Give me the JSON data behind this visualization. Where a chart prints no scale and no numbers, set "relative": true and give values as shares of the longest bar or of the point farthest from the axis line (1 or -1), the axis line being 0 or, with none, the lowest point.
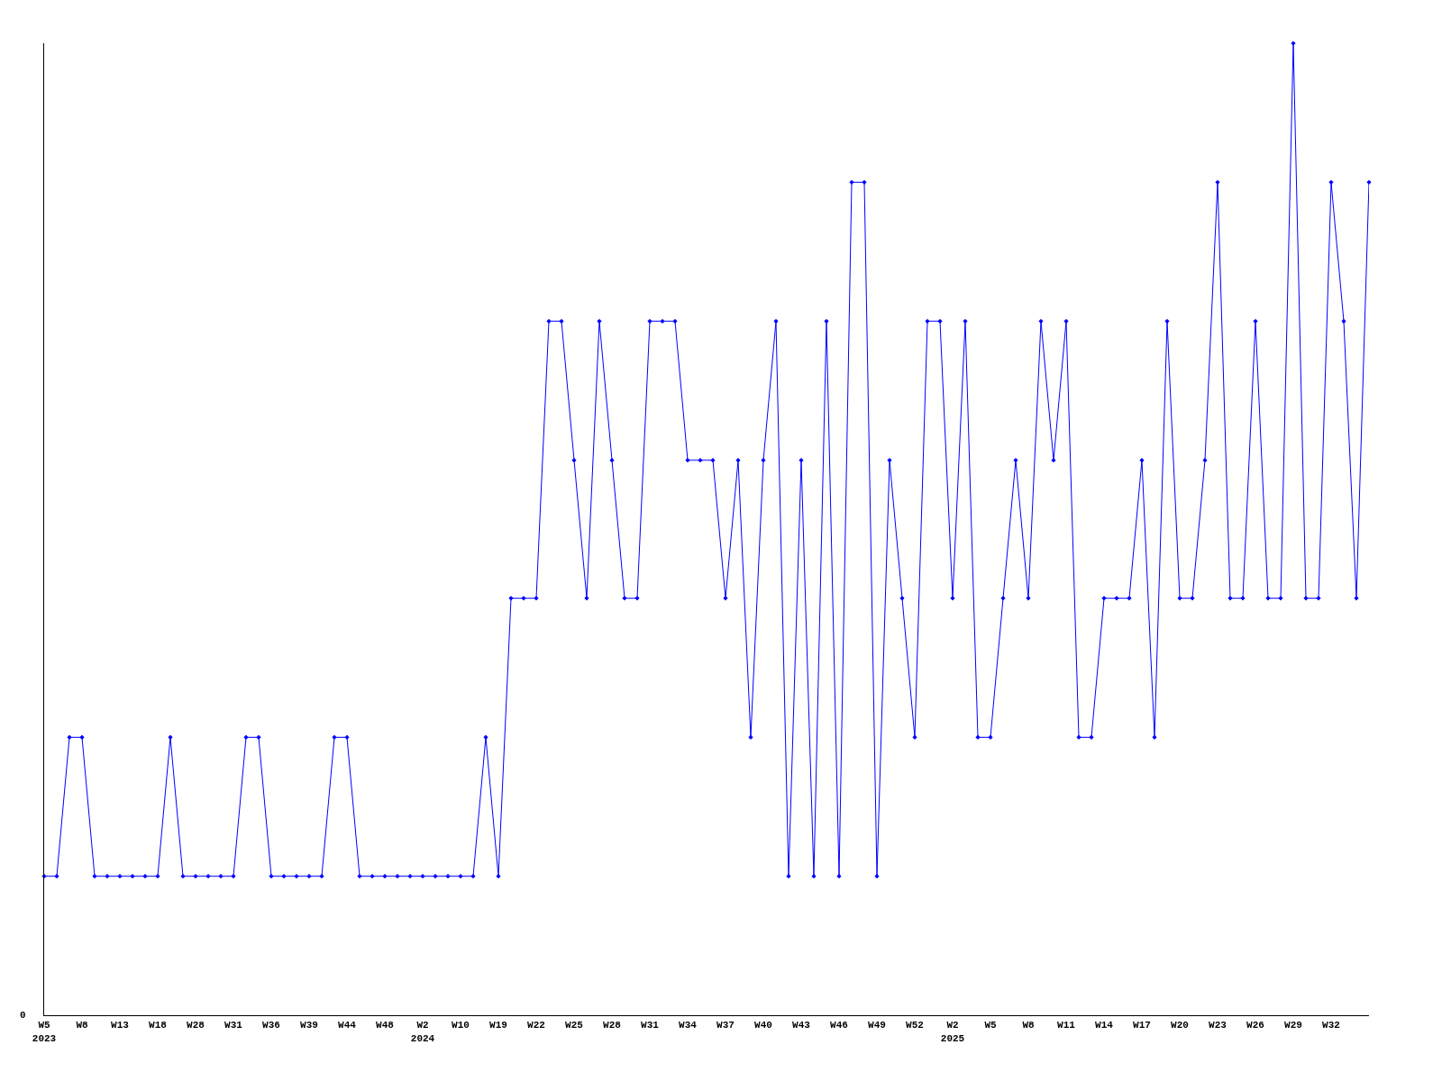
{
  "chart_data": {
    "type": "line",
    "relative": true,
    "categories": [
      "W5\n2023",
      null,
      null,
      "W8",
      null,
      null,
      "W13",
      null,
      null,
      "W18",
      null,
      null,
      "W28",
      null,
      null,
      "W31",
      null,
      null,
      "W36",
      null,
      null,
      "W39",
      null,
      null,
      "W44",
      null,
      null,
      "W48",
      null,
      null,
      "W2\n2024",
      null,
      null,
      "W10",
      null,
      null,
      "W19",
      null,
      null,
      "W22",
      null,
      null,
      "W25",
      null,
      null,
      "W28",
      null,
      null,
      "W31",
      null,
      null,
      "W34",
      null,
      null,
      "W37",
      null,
      null,
      "W40",
      null,
      null,
      "W43",
      null,
      null,
      "W46",
      null,
      null,
      "W49",
      null,
      null,
      "W52",
      null,
      null,
      "W2\n2025",
      null,
      null,
      "W5",
      null,
      null,
      "W8",
      null,
      null,
      "W11",
      null,
      null,
      "W14",
      null,
      null,
      "W17",
      null,
      null,
      "W20",
      null,
      null,
      "W23",
      null,
      null,
      "W26",
      null,
      null,
      "W29",
      null,
      null,
      "W32",
      null,
      null,
      null
    ],
    "series": [
      {
        "color": "#0000ff",
        "values": [
          0.143,
          0.143,
          0.286,
          0.286,
          0.143,
          0.143,
          0.143,
          0.143,
          0.143,
          0.143,
          0.286,
          0.143,
          0.143,
          0.143,
          0.143,
          0.143,
          0.286,
          0.286,
          0.143,
          0.143,
          0.143,
          0.143,
          0.143,
          0.286,
          0.286,
          0.143,
          0.143,
          0.143,
          0.143,
          0.143,
          0.143,
          0.143,
          0.143,
          0.143,
          0.143,
          0.286,
          0.143,
          0.429,
          0.429,
          0.429,
          0.714,
          0.714,
          0.571,
          0.429,
          0.714,
          0.571,
          0.429,
          0.429,
          0.714,
          0.714,
          0.714,
          0.571,
          0.571,
          0.571,
          0.429,
          0.571,
          0.286,
          0.571,
          0.714,
          0.143,
          0.571,
          0.143,
          0.714,
          0.143,
          0.857,
          0.857,
          0.143,
          0.571,
          0.429,
          0.286,
          0.714,
          0.714,
          0.429,
          0.714,
          0.286,
          0.286,
          0.429,
          0.571,
          0.429,
          0.714,
          0.571,
          0.714,
          0.286,
          0.286,
          0.429,
          0.429,
          0.429,
          0.571,
          0.286,
          0.714,
          0.429,
          0.429,
          0.571,
          0.857,
          0.429,
          0.429,
          0.714,
          0.429,
          0.429,
          1,
          0.429,
          0.429,
          0.857,
          0.714,
          0.429,
          0.857
        ]
      }
    ],
    "annotations": [
      "0"
    ],
    "marker": "diamond",
    "line_style": "solid",
    "legend": false
  }
}
